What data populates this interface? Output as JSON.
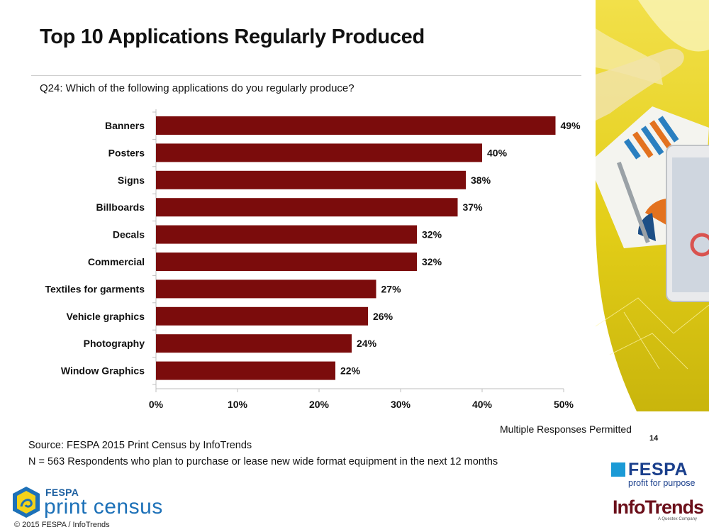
{
  "slide": {
    "title": "Top 10 Applications Regularly Produced",
    "question": "Q24: Which of the following applications do you regularly produce?",
    "note": "Multiple Responses Permitted",
    "page_number": "14",
    "source": "Source: FESPA 2015 Print Census by InfoTrends",
    "respondents": "N = 563 Respondents who plan to purchase or lease new wide format equipment in the next 12 months",
    "copyright": "© 2015 FESPA  / InfoTrends"
  },
  "logos": {
    "census_brand": "FESPA",
    "census_word": "print census",
    "fespa_word": "FESPA",
    "fespa_tagline": "profit for purpose",
    "infotrends_word": "InfoTrends",
    "infotrends_sub": "A Questex Company"
  },
  "colors": {
    "bar": "#7b0c0c",
    "axis": "#bfbfbf",
    "accent_yellow": "#e7d21b"
  },
  "chart_data": {
    "type": "bar",
    "orientation": "horizontal",
    "categories": [
      "Banners",
      "Posters",
      "Signs",
      "Billboards",
      "Decals",
      "Commercial",
      "Textiles for garments",
      "Vehicle graphics",
      "Photography",
      "Window Graphics"
    ],
    "values": [
      49,
      40,
      38,
      37,
      32,
      32,
      27,
      26,
      24,
      22
    ],
    "data_labels": [
      "49%",
      "40%",
      "38%",
      "37%",
      "32%",
      "32%",
      "27%",
      "26%",
      "24%",
      "22%"
    ],
    "x_ticks": [
      "0%",
      "10%",
      "20%",
      "30%",
      "40%",
      "50%"
    ],
    "xlim": [
      0,
      50
    ],
    "unit": "%",
    "grid": false,
    "legend": "none"
  }
}
